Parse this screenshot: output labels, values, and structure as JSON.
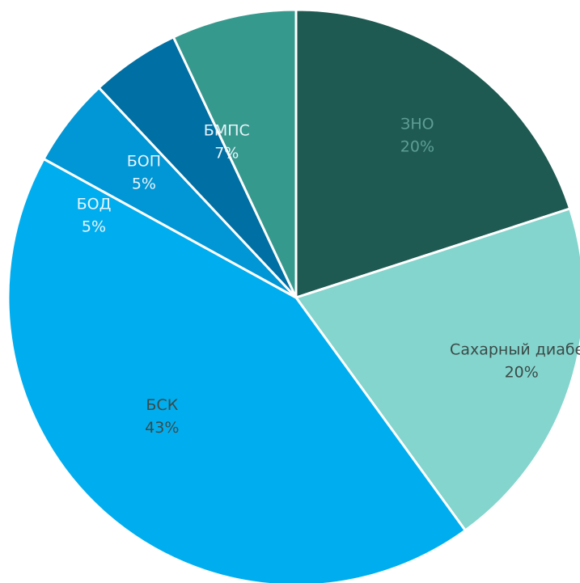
{
  "chart_data": {
    "type": "pie",
    "start_angle_deg": 0,
    "direction": "clockwise",
    "slices": [
      {
        "label": "ЗНО",
        "value": 20,
        "pct_label": "20%",
        "color": "#1e5a52",
        "label_color": "#5d9e95"
      },
      {
        "label": "Сахарный диабет",
        "value": 20,
        "pct_label": "20%",
        "color": "#84d5cd",
        "label_color": "#3b4a48"
      },
      {
        "label": "БСК",
        "value": 43,
        "pct_label": "43%",
        "color": "#00aeef",
        "label_color": "#3b4a48"
      },
      {
        "label": "БОД",
        "value": 5,
        "pct_label": "5%",
        "color": "#0196d5",
        "label_color": "#e8f4fa"
      },
      {
        "label": "БОП",
        "value": 5,
        "pct_label": "5%",
        "color": "#006fa3",
        "label_color": "#e8f4fa"
      },
      {
        "label": "БМПС",
        "value": 7,
        "pct_label": "7%",
        "color": "#36998e",
        "label_color": "#e8f4fa"
      }
    ]
  }
}
